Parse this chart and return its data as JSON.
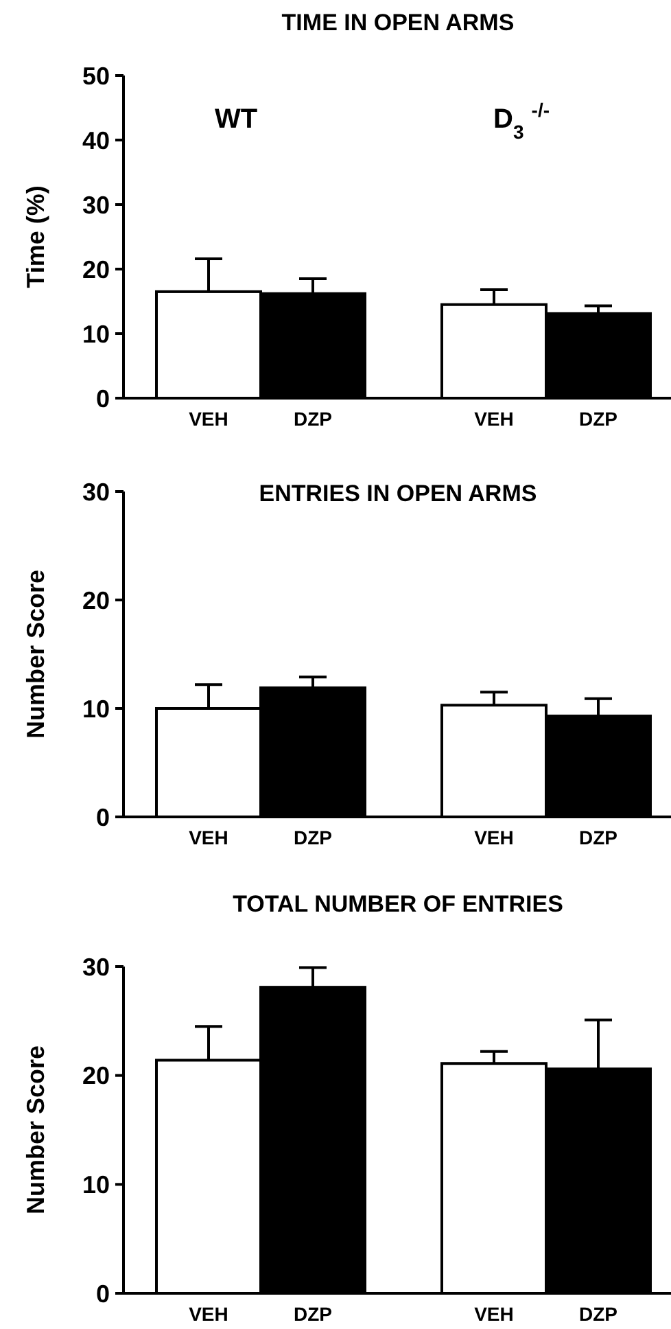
{
  "chart_data": [
    {
      "type": "bar",
      "title": "TIME IN OPEN ARMS",
      "ylabel": "Time (%)",
      "categories": [
        "VEH",
        "DZP",
        "VEH",
        "DZP"
      ],
      "values": [
        16.5,
        16.2,
        14.5,
        13.1
      ],
      "colors": [
        "#ffffff",
        "#000000",
        "#ffffff",
        "#000000"
      ],
      "errors": [
        [
          16.5,
          21.6
        ],
        [
          16.2,
          18.5
        ],
        [
          14.5,
          16.8
        ],
        [
          13.1,
          14.3
        ]
      ],
      "ylim": [
        0,
        50
      ],
      "yticks": [
        0,
        10,
        20,
        30,
        40,
        50
      ],
      "annotations": [
        "WT",
        "D$_{3}$ $^{-/-}$"
      ]
    },
    {
      "type": "bar",
      "title": "ENTRIES IN OPEN ARMS",
      "ylabel": "Number Score",
      "categories": [
        "VEH",
        "DZP",
        "VEH",
        "DZP"
      ],
      "values": [
        10.0,
        11.9,
        10.3,
        9.3
      ],
      "colors": [
        "#ffffff",
        "#000000",
        "#ffffff",
        "#000000"
      ],
      "errors": [
        [
          10.0,
          12.2
        ],
        [
          11.9,
          12.9
        ],
        [
          10.3,
          11.5
        ],
        [
          9.3,
          10.9
        ]
      ],
      "ylim": [
        0,
        30
      ],
      "yticks": [
        0,
        10,
        20,
        30
      ]
    },
    {
      "type": "bar",
      "title": "TOTAL NUMBER OF ENTRIES",
      "ylabel": "Number Score",
      "categories": [
        "VEH",
        "DZP",
        "VEH",
        "DZP"
      ],
      "values": [
        21.4,
        28.1,
        21.1,
        20.6
      ],
      "colors": [
        "#ffffff",
        "#000000",
        "#ffffff",
        "#000000"
      ],
      "errors": [
        [
          21.4,
          24.5
        ],
        [
          28.1,
          29.9
        ],
        [
          21.1,
          22.2
        ],
        [
          20.6,
          25.1
        ]
      ],
      "ylim": [
        0,
        30
      ],
      "yticks": [
        0,
        10,
        20,
        30
      ]
    }
  ]
}
